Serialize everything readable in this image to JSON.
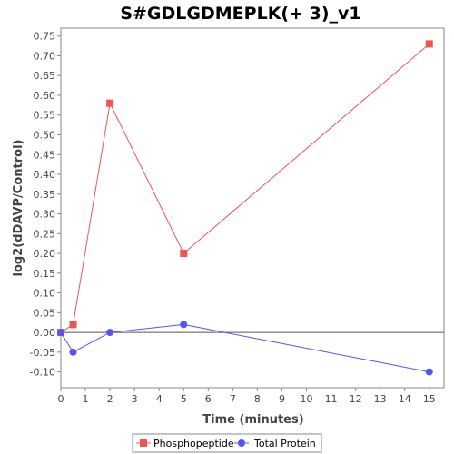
{
  "chart_data": {
    "type": "line",
    "title": "S#GDLGDMEPLK(+ 3)_v1",
    "xlabel": "Time (minutes)",
    "ylabel": "log2(dDAVP/Control)",
    "xlim": [
      0,
      15.6
    ],
    "ylim": [
      -0.14,
      0.77
    ],
    "x_ticks": [
      0,
      1,
      2,
      3,
      4,
      5,
      6,
      7,
      8,
      9,
      10,
      11,
      12,
      13,
      14,
      15
    ],
    "y_ticks": [
      -0.1,
      -0.05,
      0.0,
      0.05,
      0.1,
      0.15,
      0.2,
      0.25,
      0.3,
      0.35,
      0.4,
      0.45,
      0.5,
      0.55,
      0.6,
      0.65,
      0.7,
      0.75
    ],
    "zero_line": true,
    "grid": false,
    "legend_position": "bottom",
    "series": [
      {
        "name": "Phosphopeptide",
        "color": "#ee5555",
        "marker": "square",
        "x": [
          0,
          0.5,
          2,
          5,
          15
        ],
        "y": [
          0.0,
          0.02,
          0.58,
          0.2,
          0.73
        ]
      },
      {
        "name": "Total Protein",
        "color": "#5555ee",
        "marker": "circle",
        "x": [
          0,
          0.5,
          2,
          5,
          15
        ],
        "y": [
          0.0,
          -0.05,
          0.0,
          0.02,
          -0.1
        ]
      }
    ]
  }
}
